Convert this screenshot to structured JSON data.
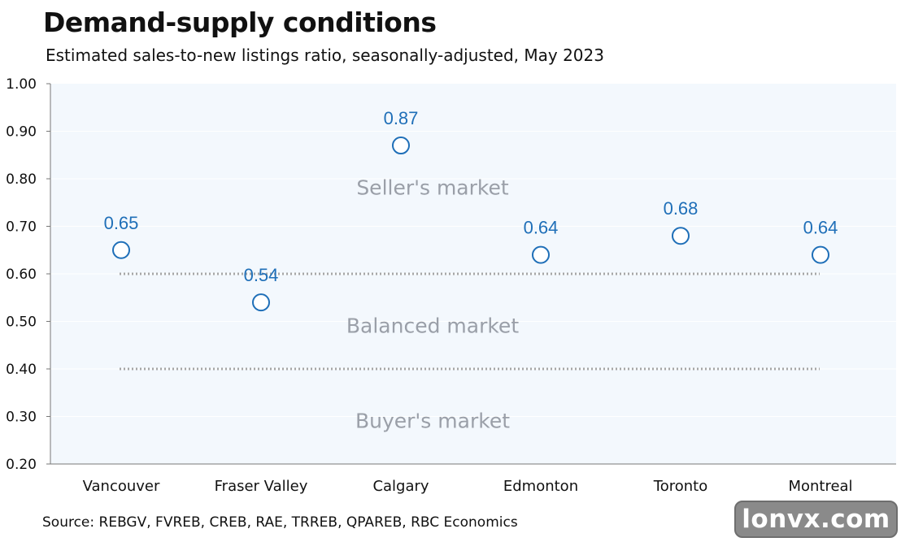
{
  "title": "Demand-supply conditions",
  "subtitle": "Estimated sales-to-new listings ratio, seasonally-adjusted, May 2023",
  "source": "Source: REBGV, FVREB, CREB, RAE, TRREB, QPAREB, RBC Economics",
  "watermark": "lonvx.com",
  "chart_data": {
    "type": "scatter",
    "categories": [
      "Vancouver",
      "Fraser Valley",
      "Calgary",
      "Edmonton",
      "Toronto",
      "Montreal"
    ],
    "values": [
      0.65,
      0.54,
      0.87,
      0.64,
      0.68,
      0.64
    ],
    "data_labels": [
      "0.65",
      "0.54",
      "0.87",
      "0.64",
      "0.68",
      "0.64"
    ],
    "ylim": [
      0.2,
      1.0
    ],
    "yticks": [
      1.0,
      0.9,
      0.8,
      0.7,
      0.6,
      0.5,
      0.4,
      0.3,
      0.2
    ],
    "ytick_labels": [
      "1.00",
      "0.90",
      "0.80",
      "0.70",
      "0.60",
      "0.50",
      "0.40",
      "0.30",
      "0.20"
    ],
    "thresholds": [
      0.6,
      0.4
    ],
    "zones": [
      {
        "label": "Seller's market",
        "y": 0.78
      },
      {
        "label": "Balanced market",
        "y": 0.49
      },
      {
        "label": "Buyer's market",
        "y": 0.29
      }
    ],
    "colors": {
      "marker": "#1f6fb8",
      "plot_bg": "#f3f8fd",
      "threshold": "#a6a6a6",
      "zone_text": "#9a9fa8"
    },
    "xlabel": "",
    "ylabel": "",
    "grid": true
  }
}
